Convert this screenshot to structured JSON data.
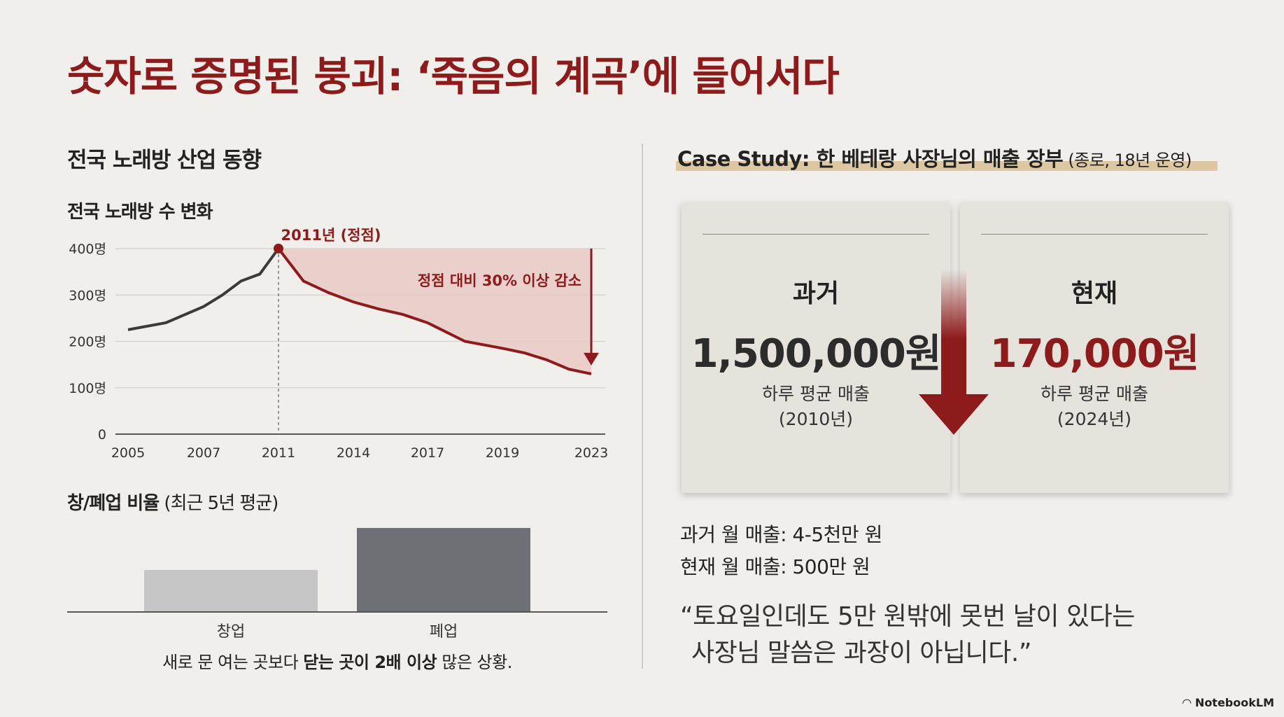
{
  "title": "숫자로 증명된 붕괴: ‘죽음의 계곡’에 들어서다",
  "left": {
    "section_title": "전국 노래방 산업 동향",
    "line_chart_title": "전국 노래방 수 변화",
    "peak_label": "2011년 (정점)",
    "decline_label": "정점 대비 30% 이상 감소",
    "bar_section_title_bold": "창/폐업 비율",
    "bar_section_title_rest": " (최근 5년 평균)",
    "caption_pre": "새로 문 여는 곳보다 ",
    "caption_bold": "닫는 곳이 2배 이상",
    "caption_post": " 많은 상황."
  },
  "chart_data": [
    {
      "type": "line",
      "title": "전국 노래방 수 변화",
      "x_ticks": [
        "2005",
        "2007",
        "2011",
        "2014",
        "2017",
        "2019",
        "2023"
      ],
      "y_ticks": [
        "0",
        "100명",
        "200명",
        "300명",
        "400명"
      ],
      "ylim": [
        0,
        400
      ],
      "x": [
        2005,
        2006,
        2007,
        2008,
        2009,
        2010,
        2011,
        2012,
        2013,
        2014,
        2015,
        2016,
        2017,
        2018,
        2019,
        2020,
        2021,
        2022,
        2023
      ],
      "y": [
        225,
        240,
        275,
        300,
        330,
        345,
        400,
        330,
        305,
        285,
        270,
        258,
        240,
        200,
        185,
        175,
        160,
        140,
        130
      ],
      "peak": {
        "x": 2011,
        "y": 400
      },
      "grid": true
    },
    {
      "type": "bar",
      "title": "창/폐업 비율 (최근 5년 평균)",
      "categories": [
        "창업",
        "폐업"
      ],
      "values": [
        1,
        2
      ]
    }
  ],
  "right": {
    "case_title": "Case Study: 한 베테랑 사장님의 매출 장부",
    "case_sub": " (종로, 18년 운영)",
    "past": {
      "label": "과거",
      "amount": "1,500,000원",
      "desc1": "하루 평균 매출",
      "desc2": "(2010년)"
    },
    "now": {
      "label": "현재",
      "amount": "170,000원",
      "desc1": "하루 평균 매출",
      "desc2": "(2024년)"
    },
    "monthly_past": "과거 월 매출: 4-5천만 원",
    "monthly_now": "현재 월 매출: 500만 원",
    "quote1": "“토요일인데도 5만 원밖에 못번 날이 있다는",
    "quote2": "사장님 말씀은 과장이 아닙니다.”"
  },
  "brand": "NotebookLM",
  "colors": {
    "accent": "#8e1b1b",
    "line": "#3a3a3a",
    "fill": "#e9c9c6",
    "bar_open": "#c6c6c6",
    "bar_close": "#6d7075"
  }
}
